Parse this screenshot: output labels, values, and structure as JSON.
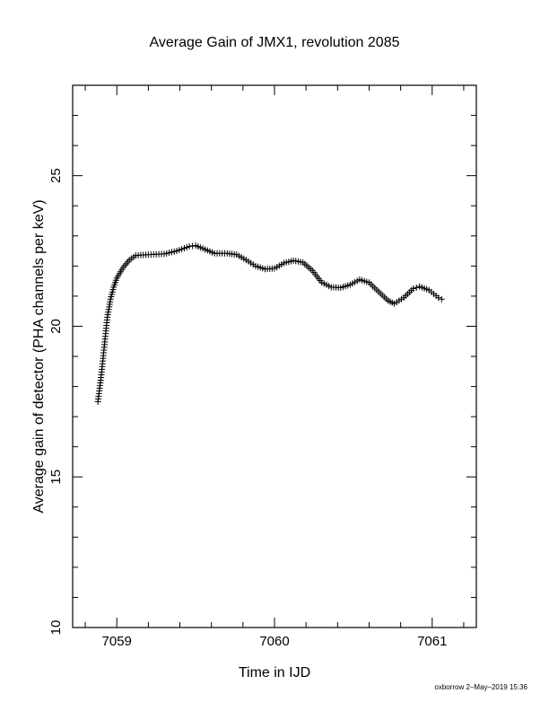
{
  "chart_data": {
    "type": "scatter",
    "title": "Average Gain of JMX1, revolution 2085",
    "xlabel": "Time in IJD",
    "ylabel": "Average gain of detector (PHA channels per keV)",
    "xlim": [
      7058.72,
      7061.28
    ],
    "ylim": [
      10,
      28
    ],
    "x_ticks": [
      7059,
      7060,
      7061
    ],
    "x_tick_labels": [
      "7059",
      "7060",
      "7061"
    ],
    "y_ticks": [
      10,
      15,
      20,
      25
    ],
    "y_tick_labels": [
      "10",
      "15",
      "20",
      "25"
    ],
    "marker": "plus",
    "grid": false,
    "series": [
      {
        "color": "#000000",
        "points": [
          [
            7058.88,
            17.5
          ],
          [
            7058.9,
            18.3
          ],
          [
            7058.92,
            19.3
          ],
          [
            7058.94,
            20.3
          ],
          [
            7058.96,
            20.9
          ],
          [
            7058.98,
            21.3
          ],
          [
            7059.0,
            21.6
          ],
          [
            7059.04,
            21.95
          ],
          [
            7059.08,
            22.2
          ],
          [
            7059.12,
            22.35
          ],
          [
            7059.2,
            22.38
          ],
          [
            7059.3,
            22.4
          ],
          [
            7059.38,
            22.5
          ],
          [
            7059.46,
            22.65
          ],
          [
            7059.5,
            22.68
          ],
          [
            7059.56,
            22.55
          ],
          [
            7059.62,
            22.42
          ],
          [
            7059.7,
            22.42
          ],
          [
            7059.76,
            22.38
          ],
          [
            7059.82,
            22.2
          ],
          [
            7059.88,
            22.0
          ],
          [
            7059.94,
            21.9
          ],
          [
            7060.0,
            21.92
          ],
          [
            7060.06,
            22.1
          ],
          [
            7060.12,
            22.18
          ],
          [
            7060.18,
            22.12
          ],
          [
            7060.24,
            21.85
          ],
          [
            7060.3,
            21.45
          ],
          [
            7060.36,
            21.3
          ],
          [
            7060.42,
            21.28
          ],
          [
            7060.48,
            21.38
          ],
          [
            7060.54,
            21.55
          ],
          [
            7060.6,
            21.45
          ],
          [
            7060.66,
            21.15
          ],
          [
            7060.72,
            20.85
          ],
          [
            7060.76,
            20.75
          ],
          [
            7060.82,
            20.95
          ],
          [
            7060.88,
            21.25
          ],
          [
            7060.92,
            21.32
          ],
          [
            7060.98,
            21.2
          ],
          [
            7061.04,
            20.95
          ],
          [
            7061.06,
            20.9
          ]
        ]
      }
    ],
    "footer": "oxborrow  2–May–2019 15:36"
  }
}
